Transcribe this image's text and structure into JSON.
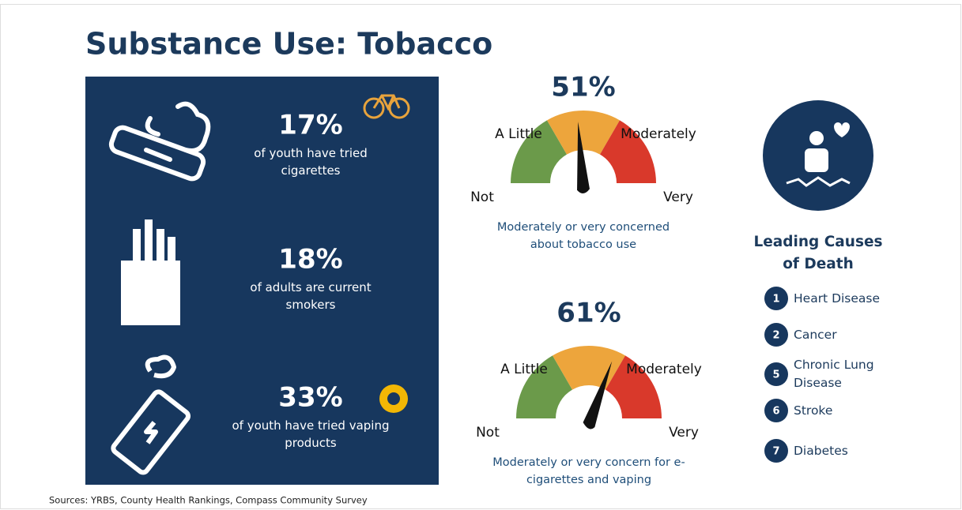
{
  "title": "Substance Use: Tobacco",
  "stats": [
    {
      "value": "17%",
      "text": "of youth have tried cigarettes"
    },
    {
      "value": "18%",
      "text": "of adults are current smokers"
    },
    {
      "value": "33%",
      "text": "of youth have tried vaping products"
    }
  ],
  "gauges": [
    {
      "value": "51%",
      "labels": [
        "Not",
        "A Little",
        "Moderately",
        "Very"
      ],
      "caption": "Moderately or very concerned about tobacco use"
    },
    {
      "value": "61%",
      "labels": [
        "Not",
        "A Little",
        "Moderately",
        "Very"
      ],
      "caption": "Moderately or very concern for e-cigarettes and vaping"
    }
  ],
  "causes": {
    "heading": "Leading Causes of Death",
    "items": [
      {
        "rank": 1,
        "label": "Heart Disease"
      },
      {
        "rank": 2,
        "label": "Cancer"
      },
      {
        "rank": 5,
        "label": "Chronic Lung Disease"
      },
      {
        "rank": 6,
        "label": "Stroke"
      },
      {
        "rank": 7,
        "label": "Diabetes"
      }
    ]
  },
  "sources": "Sources: YRBS, County Health Rankings, Compass Community Survey"
}
